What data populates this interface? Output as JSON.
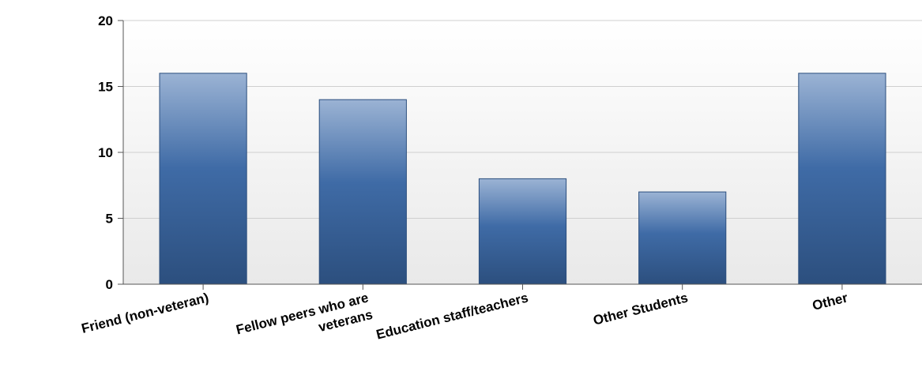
{
  "chart_data": {
    "type": "bar",
    "categories": [
      [
        "Friend (non-veteran)"
      ],
      [
        "Fellow peers who are",
        "veterans"
      ],
      [
        "Education staff/teachers"
      ],
      [
        "Other Students"
      ],
      [
        "Other"
      ]
    ],
    "values": [
      16,
      14,
      8,
      7,
      16
    ],
    "ylim": [
      0,
      20
    ],
    "yticks": [
      0,
      5,
      10,
      15,
      20
    ],
    "grid": true,
    "colors": {
      "bar_top": "#9bb3d4",
      "bar_mid": "#3f6ba6",
      "bar_bottom": "#2c4f7e",
      "plot_bg_top": "#ffffff",
      "plot_bg_bottom": "#e9e9e9",
      "gridline": "#cfcfcf",
      "axis": "#555555"
    }
  }
}
